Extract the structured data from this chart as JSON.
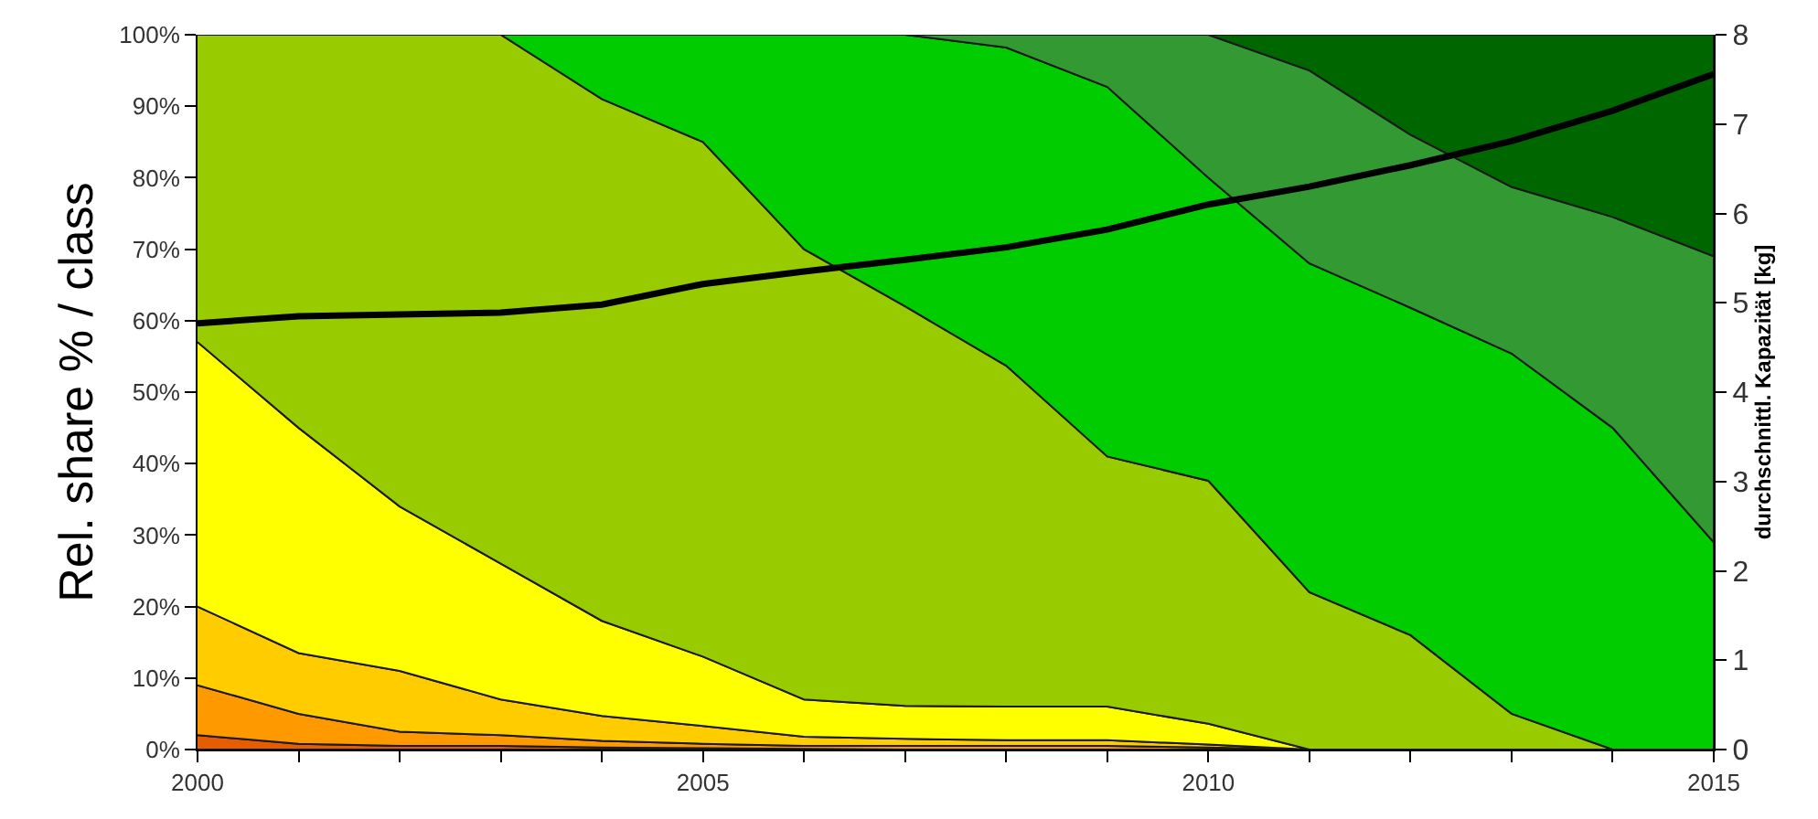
{
  "chart_data": {
    "type": "area",
    "stacked": true,
    "ylabel": "Rel. share % / class",
    "y2label": "durchschnittl. Kapazität [kg]",
    "x": [
      2000,
      2001,
      2002,
      2003,
      2004,
      2005,
      2006,
      2007,
      2008,
      2009,
      2010,
      2011,
      2012,
      2013,
      2014,
      2015
    ],
    "series": [
      {
        "color": "#e65c00",
        "values": [
          2,
          0.8,
          0.5,
          0.5,
          0.3,
          0.2,
          0.1,
          0,
          null,
          null,
          null,
          null,
          null,
          null,
          null,
          null
        ]
      },
      {
        "color": "#ff9900",
        "values": [
          7,
          4.2,
          2,
          1.5,
          0.9,
          0.6,
          0.4,
          0.5,
          0.5,
          0.5,
          0.3,
          0,
          null,
          null,
          null,
          null
        ]
      },
      {
        "color": "#ffcc00",
        "values": [
          11,
          8.5,
          8.5,
          5,
          3.5,
          2.5,
          1.3,
          1,
          0.8,
          0.8,
          0.4,
          0,
          null,
          null,
          null,
          null
        ]
      },
      {
        "color": "#ffff00",
        "values": [
          37,
          31.5,
          23,
          19,
          13.3,
          9.7,
          5.2,
          4.6,
          4.7,
          4.7,
          2.9,
          0,
          null,
          null,
          null,
          null
        ]
      },
      {
        "color": "#99cc00",
        "values": [
          43,
          55,
          66,
          74,
          73,
          72,
          63,
          55.9,
          47.7,
          35,
          34,
          22,
          16,
          5,
          0,
          null
        ]
      },
      {
        "color": "#00cc00",
        "values": [
          0,
          0,
          0,
          0,
          9,
          15,
          30,
          38,
          44.5,
          51.7,
          42.4,
          46,
          45.8,
          50.4,
          45,
          29
        ]
      },
      {
        "color": "#339933",
        "values": [
          null,
          null,
          null,
          null,
          null,
          null,
          null,
          0,
          1.8,
          7.3,
          20,
          27,
          24.2,
          23.3,
          29.5,
          40
        ]
      },
      {
        "color": "#006600",
        "values": [
          null,
          null,
          null,
          null,
          null,
          null,
          null,
          null,
          null,
          null,
          0,
          5,
          14,
          21.3,
          25.5,
          31
        ]
      },
      {
        "type": "line",
        "axis": "y2",
        "color": "#000000",
        "values": [
          4.77,
          4.85,
          4.87,
          4.89,
          4.98,
          5.21,
          5.35,
          5.48,
          5.62,
          5.82,
          6.1,
          6.3,
          6.54,
          6.81,
          7.15,
          7.56
        ]
      }
    ],
    "xlim": [
      2000,
      2015
    ],
    "xticks": [
      2000,
      {
        "value": 2001,
        "label": null
      },
      {
        "value": 2002,
        "label": null
      },
      {
        "value": 2003,
        "label": null
      },
      {
        "value": 2004,
        "label": null
      },
      2005,
      {
        "value": 2006,
        "label": null
      },
      {
        "value": 2007,
        "label": null
      },
      {
        "value": 2008,
        "label": null
      },
      {
        "value": 2009,
        "label": null
      },
      2010,
      {
        "value": 2011,
        "label": null
      },
      {
        "value": 2012,
        "label": null
      },
      {
        "value": 2013,
        "label": null
      },
      {
        "value": 2014,
        "label": null
      },
      2015
    ],
    "ylim": [
      0,
      100
    ],
    "yticks": [
      {
        "value": 0,
        "label": "0%"
      },
      {
        "value": 10,
        "label": "10%"
      },
      {
        "value": 20,
        "label": "20%"
      },
      {
        "value": 30,
        "label": "30%"
      },
      {
        "value": 40,
        "label": "40%"
      },
      {
        "value": 50,
        "label": "50%"
      },
      {
        "value": 60,
        "label": "60%"
      },
      {
        "value": 70,
        "label": "70%"
      },
      {
        "value": 80,
        "label": "80%"
      },
      {
        "value": 90,
        "label": "90%"
      },
      {
        "value": 100,
        "label": "100%"
      }
    ],
    "y2lim": [
      0,
      8
    ],
    "y2ticks": [
      0,
      1,
      2,
      3,
      4,
      5,
      6,
      7,
      8
    ],
    "marker": "none",
    "line_style": "solid"
  }
}
